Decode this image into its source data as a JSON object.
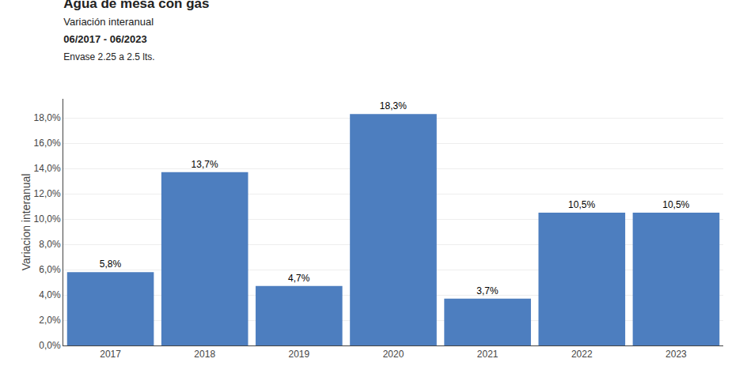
{
  "chart_data": {
    "type": "bar",
    "title": "Agua de mesa con gas",
    "subtitle": [
      "Variación interanual",
      "06/2017 - 06/2023",
      "Envase 2.25 a 2.5 lts."
    ],
    "categories": [
      "2017",
      "2018",
      "2019",
      "2020",
      "2021",
      "2022",
      "2023"
    ],
    "values": [
      5.8,
      13.7,
      4.7,
      18.3,
      3.7,
      10.5,
      10.5
    ],
    "value_labels": [
      "5,8%",
      "13,7%",
      "4,7%",
      "18,3%",
      "3,7%",
      "10,5%",
      "10,5%"
    ],
    "data_labels": true,
    "color": "#4d7ebf",
    "ylabel": "Variacion interanual",
    "ylim": [
      0,
      19.5
    ],
    "yticks": [
      {
        "value": 0,
        "label": "0,0%"
      },
      {
        "value": 2,
        "label": "2,0%"
      },
      {
        "value": 4,
        "label": "4,0%"
      },
      {
        "value": 6,
        "label": "6,0%"
      },
      {
        "value": 8,
        "label": "8,0%"
      },
      {
        "value": 10,
        "label": "10,0%"
      },
      {
        "value": 12,
        "label": "12,0%"
      },
      {
        "value": 14,
        "label": "14,0%"
      },
      {
        "value": 16,
        "label": "16,0%"
      },
      {
        "value": 18,
        "label": "18,0%"
      }
    ],
    "grid": true
  }
}
